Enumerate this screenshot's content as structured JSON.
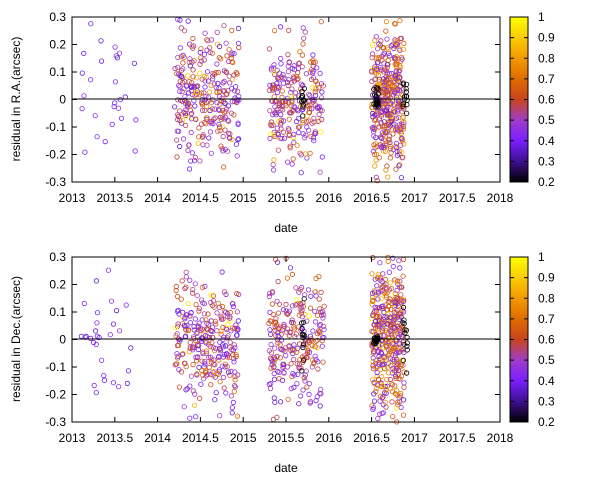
{
  "chart_data": [
    {
      "type": "scatter",
      "xlabel": "date",
      "ylabel": "residual in R.A.(arcsec)",
      "xlim": [
        2013,
        2018
      ],
      "ylim": [
        -0.3,
        0.3
      ],
      "xticks": [
        "2013",
        "2013.5",
        "2014",
        "2014.5",
        "2015",
        "2015.5",
        "2016",
        "2016.5",
        "2017",
        "2017.5",
        "2018"
      ],
      "yticks": [
        "-0.3",
        "-0.2",
        "-0.1",
        "0",
        "0.1",
        "0.2",
        "0.3"
      ],
      "colorbar": {
        "range": [
          0.2,
          1.0
        ],
        "ticks": [
          "0.2",
          "0.3",
          "0.4",
          "0.5",
          "0.6",
          "0.7",
          "0.8",
          "0.9",
          "1"
        ],
        "colormap": "gnuplot-pm3d"
      },
      "zero_line": 0,
      "grid": false,
      "clusters": [
        {
          "x_range": [
            2013.1,
            2013.75
          ],
          "y_sd": 0.14,
          "count": 30,
          "color_range": [
            0.35,
            0.45
          ]
        },
        {
          "x_range": [
            2014.2,
            2014.95
          ],
          "y_sd": 0.12,
          "count": 300,
          "color_range": [
            0.35,
            0.7
          ]
        },
        {
          "x_range": [
            2015.3,
            2015.95
          ],
          "y_sd": 0.12,
          "count": 260,
          "color_range": [
            0.35,
            0.7
          ]
        },
        {
          "x_range": [
            2015.68,
            2015.72
          ],
          "y_sd": 0.03,
          "count": 12,
          "color_range": [
            0.2,
            0.2
          ]
        },
        {
          "x_range": [
            2016.5,
            2016.88
          ],
          "y_sd": 0.13,
          "count": 420,
          "color_range": [
            0.35,
            0.8
          ]
        },
        {
          "x_range": [
            2016.52,
            2016.58
          ],
          "y_sd": 0.02,
          "count": 20,
          "color_range": [
            0.2,
            0.2
          ]
        },
        {
          "x_range": [
            2016.86,
            2016.92
          ],
          "y_sd": 0.03,
          "count": 14,
          "color_range": [
            0.2,
            0.2
          ]
        }
      ]
    },
    {
      "type": "scatter",
      "xlabel": "date",
      "ylabel": "residual in Dec.(arcsec)",
      "xlim": [
        2013,
        2018
      ],
      "ylim": [
        -0.3,
        0.3
      ],
      "xticks": [
        "2013",
        "2013.5",
        "2014",
        "2014.5",
        "2015",
        "2015.5",
        "2016",
        "2016.5",
        "2017",
        "2017.5",
        "2018"
      ],
      "yticks": [
        "-0.3",
        "-0.2",
        "-0.1",
        "0",
        "0.1",
        "0.2",
        "0.3"
      ],
      "colorbar": {
        "range": [
          0.2,
          1.0
        ],
        "ticks": [
          "0.2",
          "0.3",
          "0.4",
          "0.5",
          "0.6",
          "0.7",
          "0.8",
          "0.9",
          "1"
        ],
        "colormap": "gnuplot-pm3d"
      },
      "zero_line": 0,
      "grid": false,
      "clusters": [
        {
          "x_range": [
            2013.1,
            2013.75
          ],
          "y_sd": 0.12,
          "count": 30,
          "color_range": [
            0.35,
            0.45
          ]
        },
        {
          "x_range": [
            2014.2,
            2014.95
          ],
          "y_sd": 0.12,
          "count": 300,
          "color_range": [
            0.35,
            0.7
          ]
        },
        {
          "x_range": [
            2015.3,
            2015.95
          ],
          "y_sd": 0.12,
          "count": 260,
          "color_range": [
            0.35,
            0.7
          ]
        },
        {
          "x_range": [
            2015.68,
            2015.72
          ],
          "y_sd": 0.06,
          "count": 12,
          "color_range": [
            0.2,
            0.2
          ]
        },
        {
          "x_range": [
            2016.5,
            2016.88
          ],
          "y_sd": 0.14,
          "count": 420,
          "color_range": [
            0.35,
            0.8
          ]
        },
        {
          "x_range": [
            2016.52,
            2016.58
          ],
          "y_sd": 0.01,
          "count": 20,
          "color_range": [
            0.2,
            0.2
          ]
        },
        {
          "x_range": [
            2016.86,
            2016.92
          ],
          "y_sd": 0.06,
          "count": 14,
          "color_range": [
            0.2,
            0.2
          ]
        }
      ]
    }
  ]
}
